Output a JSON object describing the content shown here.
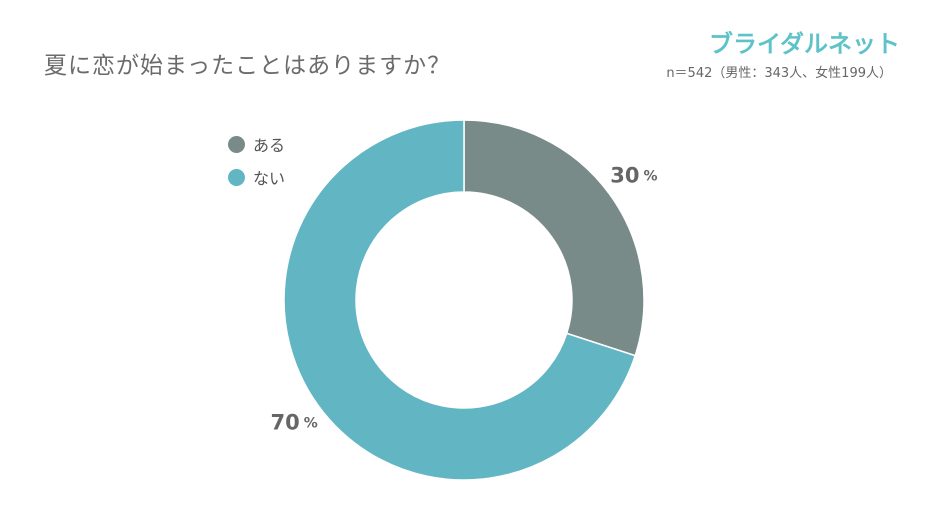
{
  "title": "夏に恋が始まったことはありますか？",
  "brand": "ブライダルネット",
  "sample_note": "n＝542（男性：343人、女性199人）",
  "chart_data": {
    "type": "pie",
    "donut": true,
    "categories": [
      "ある",
      "ない"
    ],
    "values": [
      30,
      70
    ],
    "colors": [
      "#788b89",
      "#62b6c3"
    ],
    "unit": "%",
    "legend": "top-left",
    "title": "夏に恋が始まったことはありますか？"
  }
}
